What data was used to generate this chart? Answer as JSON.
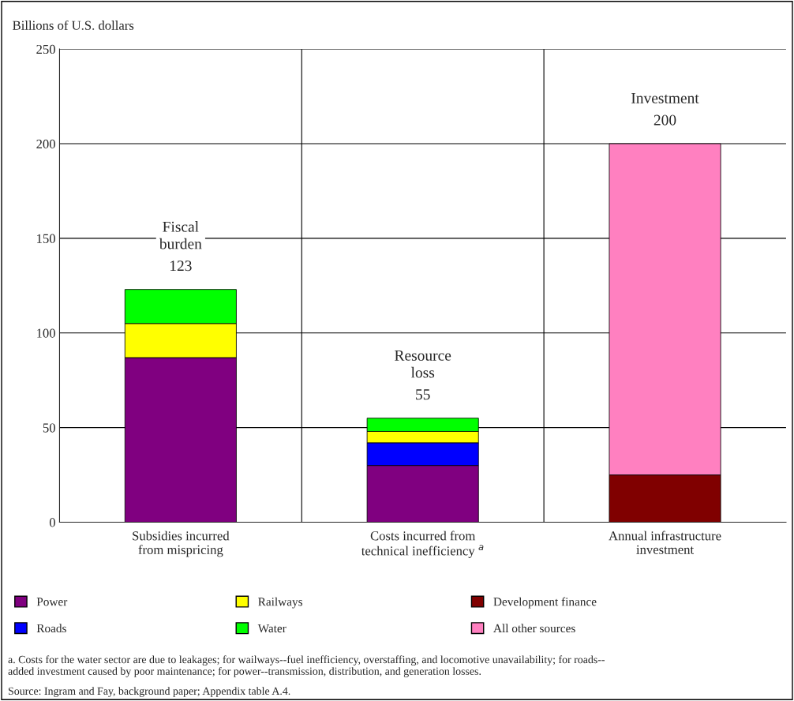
{
  "chart_data": {
    "type": "bar",
    "stacked": true,
    "ylabel": "Billions of U.S. dollars",
    "categories": [
      "Subsidies incurred\nfrom mispricing",
      "Costs incurred from\ntechnical inefficiency $^{a}$",
      "Annual infrastructure\ninvestment"
    ],
    "series": [
      {
        "name": "Power",
        "color": "#800080",
        "values": [
          87,
          30,
          null
        ]
      },
      {
        "name": "Roads",
        "color": "#0000ff",
        "values": [
          null,
          12,
          null
        ]
      },
      {
        "name": "Railways",
        "color": "#ffff00",
        "values": [
          18,
          6,
          null
        ]
      },
      {
        "name": "Water",
        "color": "#00ff00",
        "values": [
          18,
          7,
          null
        ]
      },
      {
        "name": "Development finance",
        "color": "#800000",
        "values": [
          null,
          null,
          25
        ]
      },
      {
        "name": "All other sources",
        "color": "#ff80c0",
        "values": [
          null,
          null,
          175
        ]
      }
    ],
    "totals": [
      "123",
      "55",
      "200"
    ],
    "ylim": [
      0,
      250
    ],
    "yticks": [
      0,
      50,
      100,
      150,
      200,
      250
    ],
    "grid": "y",
    "legend": "bottom",
    "annotations": [
      {
        "text": "Fiscal\nburden",
        "x": "Subsidies incurred\nfrom mispricing",
        "y": 123
      },
      {
        "text": "Resource\nloss",
        "x": "Costs incurred from\ntechnical inefficiency $^{a}$",
        "y": 55
      },
      {
        "text": "Investment",
        "x": "Annual infrastructure\ninvestment",
        "y": 200
      },
      "a. Costs for the water sector are due to leakages; for wailways--fuel inefficiency, overstaffing, and locomotive unavailability; for roads--\nadded investment caused by poor maintenance; for power--transmission, distribution, and generation losses.",
      "Source: Ingram and Fay, background paper; Appendix table A.4."
    ]
  }
}
